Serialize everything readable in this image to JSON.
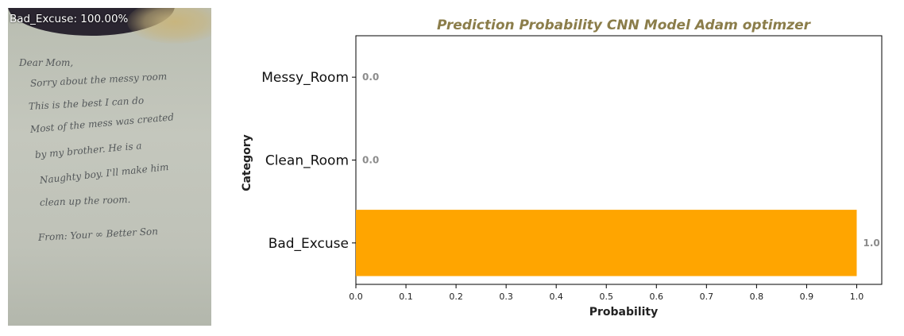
{
  "photo": {
    "prediction_label": "Bad_Excuse: 100.00%",
    "note_lines": [
      "Dear Mom,",
      "Sorry about the messy room",
      "This is the best I can do",
      "Most of the mess was created",
      "by my brother. He is a",
      "Naughty boy. I'll make him",
      "clean up the room.",
      "From: Your ∞ Better Son"
    ]
  },
  "chart_data": {
    "type": "bar",
    "orientation": "horizontal",
    "title": "Prediction Probability CNN Model Adam optimzer",
    "xlabel": "Probability",
    "ylabel": "Category",
    "categories": [
      "Messy_Room",
      "Clean_Room",
      "Bad_Excuse"
    ],
    "values": [
      0.0,
      0.0,
      1.0
    ],
    "value_labels": [
      "0.0",
      "0.0",
      "1.0"
    ],
    "xlim": [
      0.0,
      1.05
    ],
    "xticks": [
      "0.0",
      "0.1",
      "0.2",
      "0.3",
      "0.4",
      "0.5",
      "0.6",
      "0.7",
      "0.8",
      "0.9",
      "1.0"
    ],
    "bar_color": "#ffa500",
    "title_color": "#8b7d4a",
    "value_label_color": "#8c8c8c",
    "grid": false,
    "legend": false
  }
}
